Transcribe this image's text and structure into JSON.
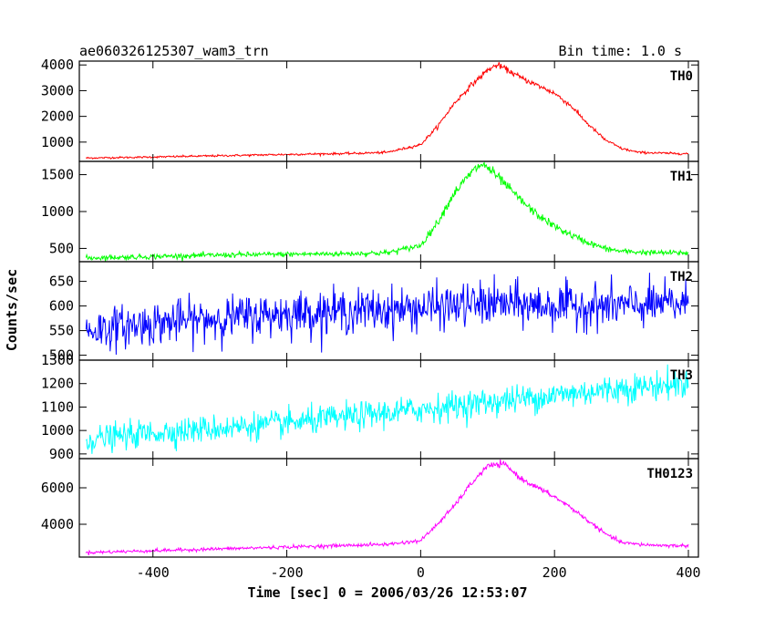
{
  "chart_data": {
    "type": "line",
    "title": "ae060326125307_wam3_trn",
    "subtitle": "Bin time: 1.0 s",
    "xlabel": "Time [sec] 0 = 2006/03/26 12:53:07",
    "ylabel": "Counts/sec",
    "xlim": [
      -510,
      415
    ],
    "x_ticks": [
      -400,
      -200,
      0,
      200,
      400
    ],
    "grid": false,
    "panels": [
      {
        "name": "TH0",
        "color": "#ff0000",
        "ylim": [
          250,
          4150
        ],
        "y_ticks": [
          1000,
          2000,
          3000,
          4000
        ],
        "series": {
          "x": [
            -500,
            -400,
            -300,
            -200,
            -100,
            -50,
            0,
            25,
            50,
            75,
            100,
            115,
            130,
            150,
            175,
            200,
            225,
            250,
            275,
            300,
            325,
            350,
            375,
            400
          ],
          "values": [
            380,
            420,
            470,
            520,
            560,
            600,
            900,
            1600,
            2500,
            3200,
            3800,
            4000,
            3800,
            3500,
            3200,
            2900,
            2400,
            1700,
            1100,
            750,
            600,
            580,
            560,
            550
          ]
        }
      },
      {
        "name": "TH1",
        "color": "#00ff00",
        "ylim": [
          320,
          1680
        ],
        "y_ticks": [
          500,
          1000,
          1500
        ],
        "series": {
          "x": [
            -500,
            -400,
            -300,
            -200,
            -100,
            -50,
            0,
            25,
            50,
            75,
            90,
            100,
            125,
            150,
            175,
            200,
            225,
            250,
            275,
            300,
            325,
            350,
            375,
            400
          ],
          "values": [
            370,
            390,
            410,
            420,
            430,
            440,
            540,
            850,
            1250,
            1520,
            1640,
            1600,
            1380,
            1150,
            950,
            800,
            680,
            580,
            500,
            460,
            450,
            440,
            440,
            440
          ]
        }
      },
      {
        "name": "TH2",
        "color": "#0000ff",
        "ylim": [
          490,
          690
        ],
        "y_ticks": [
          500,
          550,
          600,
          650
        ],
        "series": {
          "x": [
            -500,
            -400,
            -300,
            -200,
            -100,
            0,
            100,
            200,
            300,
            400
          ],
          "values": [
            550,
            565,
            575,
            585,
            590,
            595,
            605,
            600,
            600,
            605
          ]
        }
      },
      {
        "name": "TH3",
        "color": "#00ffff",
        "ylim": [
          880,
          1300
        ],
        "y_ticks": [
          900,
          1000,
          1100,
          1200,
          1300
        ],
        "series": {
          "x": [
            -500,
            -400,
            -300,
            -200,
            -100,
            0,
            100,
            200,
            300,
            400
          ],
          "values": [
            960,
            990,
            1010,
            1030,
            1060,
            1090,
            1120,
            1150,
            1180,
            1200
          ]
        }
      },
      {
        "name": "TH0123",
        "color": "#ff00ff",
        "ylim": [
          2200,
          7600
        ],
        "y_ticks": [
          4000,
          6000
        ],
        "series": {
          "x": [
            -500,
            -400,
            -300,
            -200,
            -100,
            -50,
            0,
            25,
            50,
            75,
            100,
            125,
            150,
            175,
            200,
            225,
            250,
            275,
            300,
            325,
            350,
            375,
            400
          ],
          "values": [
            2450,
            2550,
            2650,
            2750,
            2850,
            2900,
            3100,
            4000,
            5000,
            6200,
            7200,
            7300,
            6500,
            6000,
            5500,
            4900,
            4200,
            3500,
            3000,
            2900,
            2850,
            2830,
            2820
          ]
        }
      }
    ]
  }
}
